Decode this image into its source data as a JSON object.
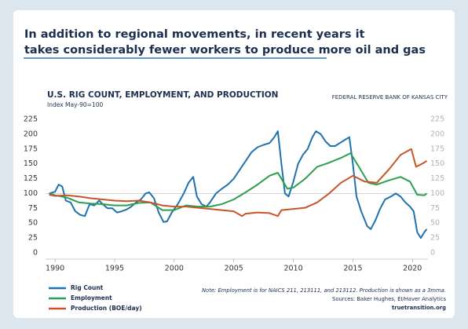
{
  "headline": [
    "In addition to regional movements, in recent years it",
    "takes considerably fewer workers to produce more oil and gas"
  ],
  "chart_data": {
    "type": "line",
    "title": "U.S. RIG COUNT, EMPLOYMENT, AND PRODUCTION",
    "subtitle": "Index May-90=100",
    "source_label": "FEDERAL RESERVE BANK OF KANSAS CITY",
    "xlim": [
      1989.2,
      2021.3
    ],
    "xticks": [
      1990,
      1995,
      2000,
      2005,
      2010,
      2015,
      2020
    ],
    "ylim": [
      0,
      225
    ],
    "yticks": [
      0,
      25,
      50,
      75,
      100,
      125,
      150,
      175,
      200,
      225
    ],
    "y2lim": [
      0,
      225
    ],
    "y2ticks": [
      0,
      25,
      50,
      75,
      100,
      125,
      150,
      175,
      200,
      225
    ],
    "hline": 100,
    "series": [
      {
        "name": "Rig Count",
        "color": "#1f72ad",
        "x": [
          1989.5,
          1990,
          1990.3,
          1990.6,
          1990.9,
          1991.3,
          1991.7,
          1992.1,
          1992.5,
          1992.9,
          1993.3,
          1993.7,
          1994,
          1994.4,
          1994.8,
          1995.2,
          1995.6,
          1996,
          1996.4,
          1996.8,
          1997.2,
          1997.6,
          1997.9,
          1998.3,
          1998.7,
          1999.1,
          1999.4,
          1999.8,
          2000.3,
          2000.8,
          2001.2,
          2001.6,
          2001.9,
          2002.3,
          2002.7,
          2003,
          2003.5,
          2004,
          2004.5,
          2005,
          2005.5,
          2006,
          2006.5,
          2007,
          2007.5,
          2008,
          2008.4,
          2008.7,
          2009,
          2009.3,
          2009.6,
          2010,
          2010.4,
          2010.8,
          2011.2,
          2011.6,
          2011.9,
          2012.3,
          2012.7,
          2013.1,
          2013.5,
          2013.9,
          2014.3,
          2014.7,
          2015,
          2015.3,
          2015.7,
          2016.2,
          2016.5,
          2016.9,
          2017.3,
          2017.7,
          2018.2,
          2018.6,
          2019,
          2019.4,
          2019.8,
          2020.1,
          2020.4,
          2020.7,
          2021,
          2021.2
        ],
        "values": [
          100,
          103,
          115,
          112,
          88,
          85,
          70,
          64,
          62,
          82,
          80,
          88,
          82,
          75,
          75,
          68,
          70,
          73,
          78,
          85,
          90,
          100,
          102,
          92,
          68,
          52,
          53,
          68,
          82,
          100,
          118,
          128,
          95,
          82,
          78,
          85,
          100,
          108,
          115,
          125,
          140,
          155,
          170,
          178,
          182,
          185,
          195,
          205,
          150,
          100,
          95,
          120,
          150,
          165,
          175,
          195,
          205,
          200,
          188,
          180,
          180,
          185,
          190,
          195,
          150,
          95,
          70,
          45,
          40,
          55,
          75,
          90,
          95,
          100,
          95,
          85,
          78,
          70,
          35,
          25,
          35,
          40
        ]
      },
      {
        "name": "Employment",
        "color": "#2e9e4f",
        "x": [
          1989.5,
          1990,
          1991,
          1992,
          1993,
          1994,
          1995,
          1996,
          1997,
          1998,
          1999,
          2000,
          2001,
          2002,
          2003,
          2004,
          2005,
          2006,
          2007,
          2008,
          2008.7,
          2009.5,
          2010,
          2011,
          2012,
          2013,
          2014,
          2014.8,
          2015.5,
          2016.3,
          2017,
          2018,
          2019,
          2019.8,
          2020.4,
          2021,
          2021.2
        ],
        "values": [
          100,
          97,
          93,
          85,
          83,
          82,
          80,
          80,
          84,
          85,
          72,
          72,
          80,
          78,
          78,
          82,
          90,
          102,
          115,
          130,
          135,
          108,
          110,
          125,
          145,
          152,
          160,
          168,
          145,
          118,
          115,
          122,
          128,
          120,
          98,
          97,
          100
        ]
      },
      {
        "name": "Production (BOE/day)",
        "color": "#c9542a",
        "x": [
          1989.5,
          1990,
          1991,
          1992,
          1993,
          1994,
          1995,
          1996,
          1997,
          1998,
          1999,
          2000,
          2001,
          2002,
          2003,
          2004,
          2005,
          2005.7,
          2006,
          2007,
          2008,
          2008.7,
          2009,
          2010,
          2011,
          2012,
          2013,
          2014,
          2015,
          2016,
          2017,
          2018,
          2019,
          2019.9,
          2020.3,
          2020.8,
          2021.2
        ],
        "values": [
          98,
          96,
          97,
          95,
          92,
          90,
          88,
          87,
          88,
          85,
          80,
          78,
          78,
          76,
          74,
          72,
          70,
          62,
          66,
          68,
          67,
          62,
          72,
          74,
          76,
          85,
          100,
          118,
          130,
          120,
          118,
          140,
          165,
          175,
          145,
          150,
          155
        ]
      }
    ],
    "note": "Note: Employment is for NAICS 211, 213111, and 213112. Production is shown as a 3mma.",
    "sources": "Sources: Baker Hughes, EI/Haver Analytics",
    "site": "truetransition.org"
  }
}
